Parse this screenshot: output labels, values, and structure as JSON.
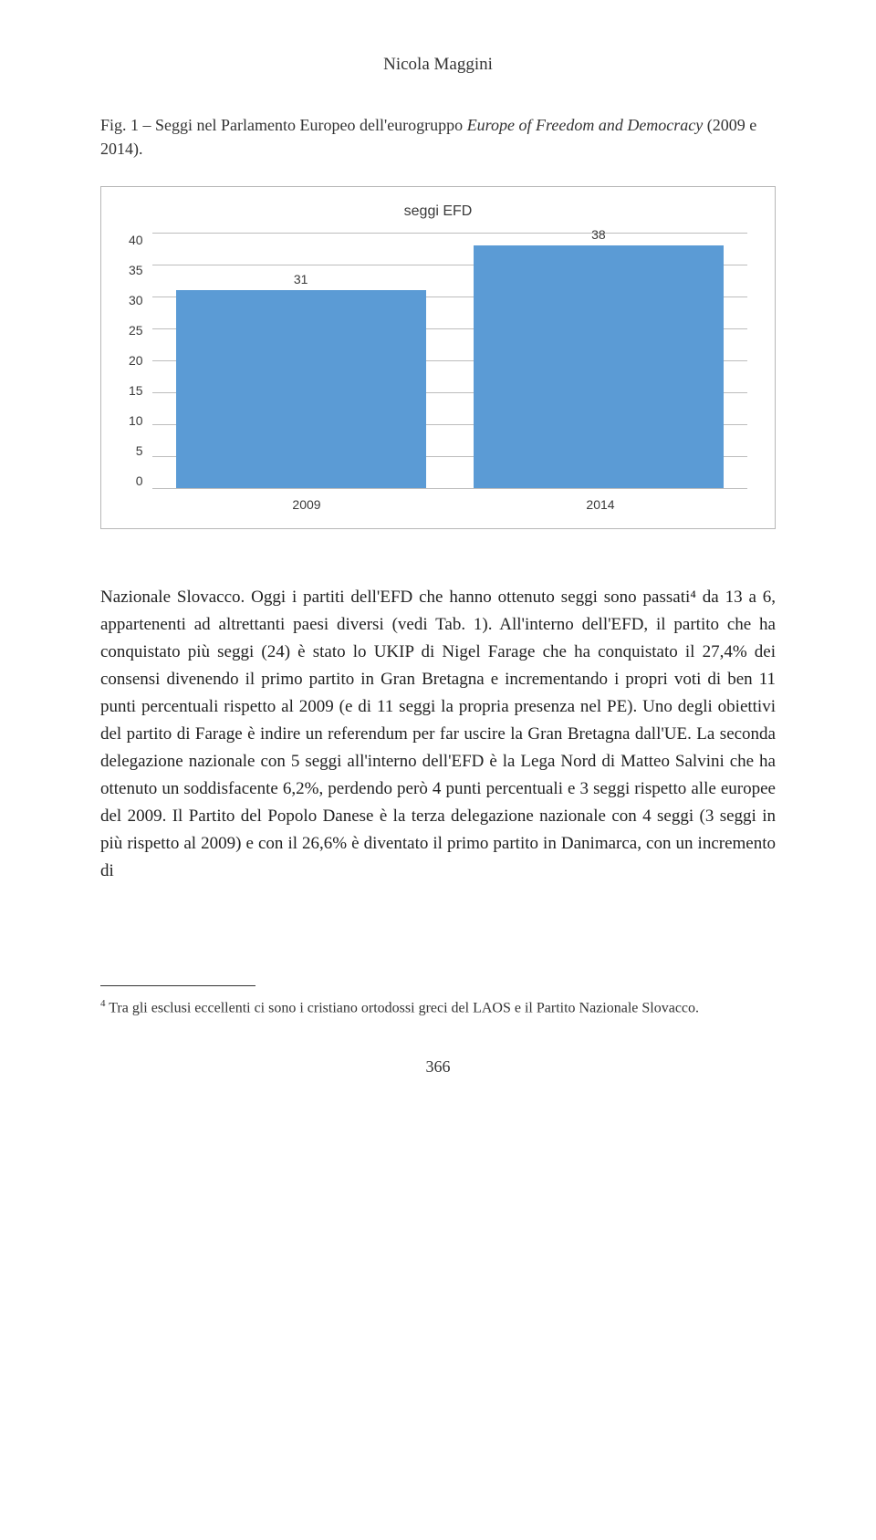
{
  "author": "Nicola Maggini",
  "figure": {
    "label_prefix": "Fig. 1 – ",
    "label_pre_italic": "Seggi nel Parlamento Europeo dell'eurogruppo ",
    "label_italic": "Europe of Freedom and Democracy",
    "label_post_italic": " (2009 e 2014)."
  },
  "chart": {
    "title": "seggi EFD",
    "type": "bar",
    "categories": [
      "2009",
      "2014"
    ],
    "values": [
      31,
      38
    ],
    "value_labels": [
      "31",
      "38"
    ],
    "bar_color": "#5b9bd5",
    "ylim": [
      0,
      40
    ],
    "ytick_step": 5,
    "yticks": [
      "40",
      "35",
      "30",
      "25",
      "20",
      "15",
      "10",
      "5",
      "0"
    ],
    "grid_color": "#bdbdbd",
    "background_color": "#ffffff"
  },
  "body": "Nazionale Slovacco. Oggi i partiti dell'EFD che hanno ottenuto seggi sono passati⁴ da 13 a 6, appartenenti ad altrettanti paesi diversi (vedi Tab. 1). All'interno dell'EFD, il partito che ha conquistato più seggi (24) è stato lo UKIP di Nigel Farage che ha conquistato il 27,4% dei consensi divenendo il primo partito in Gran Bretagna e incrementando i propri voti di ben 11 punti percentuali rispetto al 2009 (e di 11 seggi la propria presenza nel PE). Uno degli obiettivi del partito di Farage è indire un referendum per far uscire la Gran Bretagna dall'UE. La seconda delegazione nazionale con 5 seggi all'interno dell'EFD è la Lega Nord di Matteo Salvini che ha ottenuto un soddisfacente 6,2%, perdendo però 4 punti percentuali e 3 seggi rispetto alle europee del 2009. Il Partito del Popolo Danese è la terza delegazione nazionale con 4 seggi (3 seggi in più rispetto al 2009) e con il 26,6% è diventato il primo partito in Danimarca, con un incremento di",
  "footnote": {
    "marker": "4",
    "text": "  Tra gli esclusi eccellenti ci sono i cristiano ortodossi greci del LAOS e il Partito Nazionale Slovacco."
  },
  "page_number": "366"
}
